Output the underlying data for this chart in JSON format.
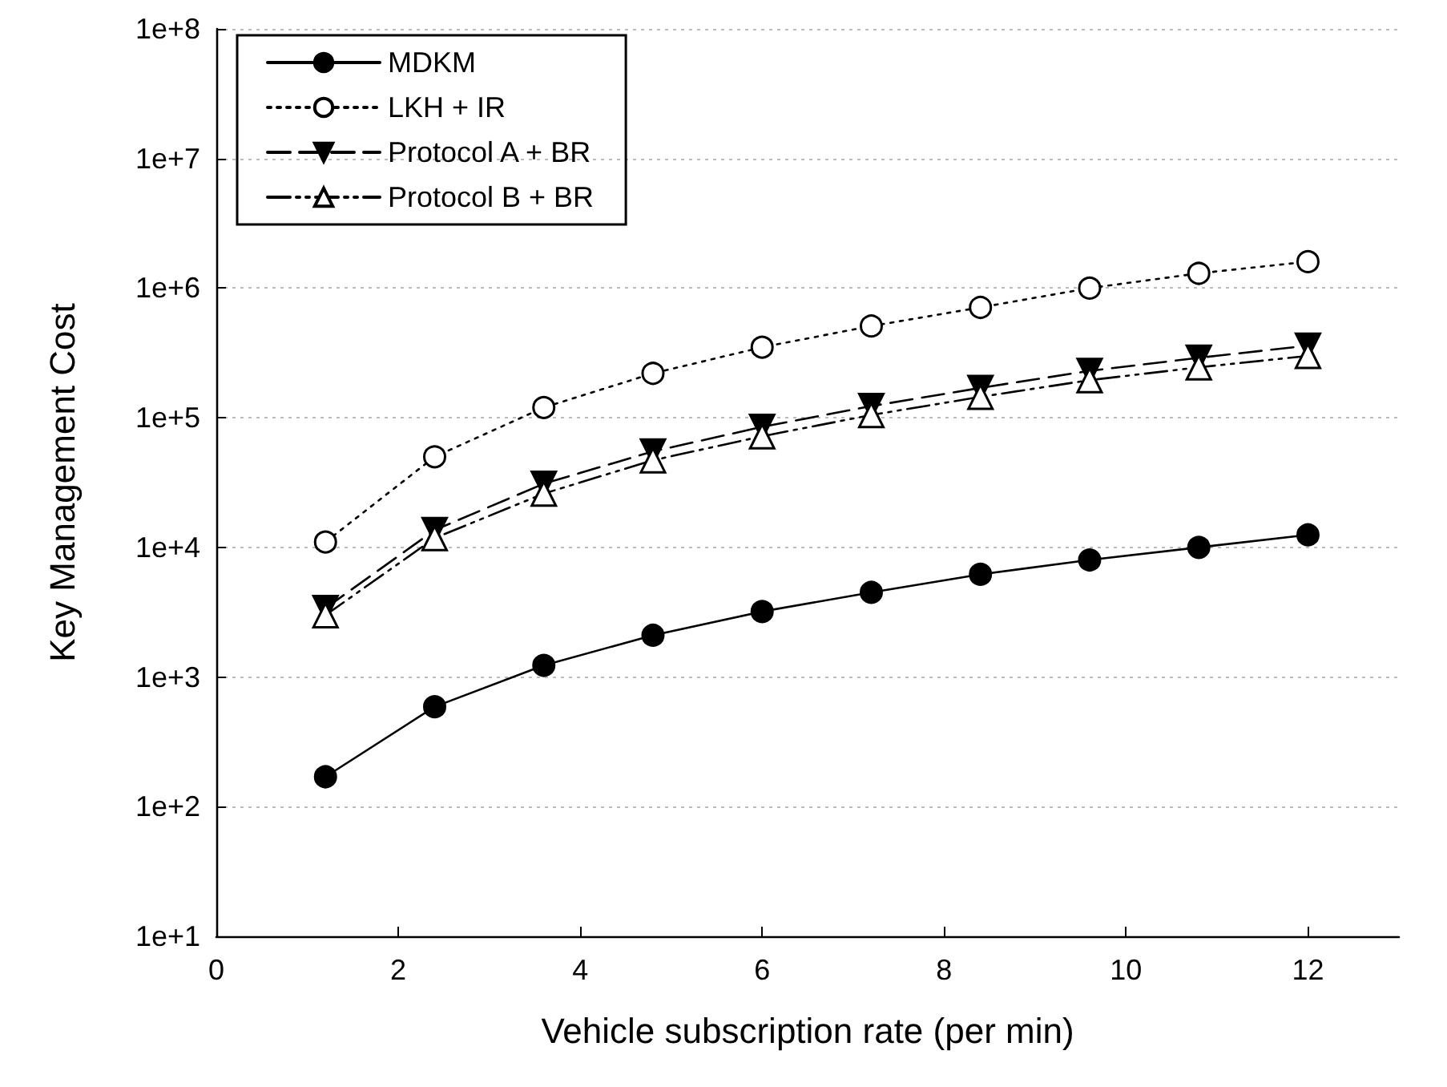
{
  "chart_data": {
    "type": "line",
    "xlabel": "Vehicle subscription rate (per min)",
    "ylabel": "Key Management Cost",
    "x": [
      1.2,
      2.4,
      3.6,
      4.8,
      6.0,
      7.2,
      8.4,
      9.6,
      10.8,
      12.0
    ],
    "series": [
      {
        "name": "MDKM",
        "color": "#000000",
        "marker": "circle",
        "line_style": "solid",
        "values": [
          170,
          590,
          1230,
          2100,
          3200,
          4500,
          6200,
          8000,
          10000,
          12500
        ]
      },
      {
        "name": "LKH + IR",
        "color": "#000000",
        "marker": "circle",
        "line_style": "dotted",
        "values": [
          11000,
          50000,
          120000,
          220000,
          350000,
          510000,
          710000,
          1000000,
          1300000,
          1600000
        ]
      },
      {
        "name": "Protocol A + BR",
        "color": "#000000",
        "marker": "triangle",
        "line_style": "dashed",
        "values": [
          3400,
          13600,
          31000,
          55000,
          85000,
          123000,
          170000,
          230000,
          290000,
          360000
        ]
      },
      {
        "name": "Protocol B + BR",
        "color": "#000000",
        "marker": "triangle",
        "line_style": "dashdot",
        "values": [
          3000,
          11800,
          26000,
          47000,
          72000,
          105000,
          145000,
          195000,
          245000,
          300000
        ]
      }
    ],
    "log": "y",
    "xlim": [
      0,
      13
    ],
    "xticks": [
      0,
      2,
      4,
      6,
      8,
      10,
      12
    ],
    "ylim": [
      10,
      100000000
    ],
    "yticks": [
      {
        "value": 10,
        "label": "1e+1"
      },
      {
        "value": 100,
        "label": "1e+2"
      },
      {
        "value": 1000,
        "label": "1e+3"
      },
      {
        "value": 10000,
        "label": "1e+4"
      },
      {
        "value": 100000,
        "label": "1e+5"
      },
      {
        "value": 1000000,
        "label": "1e+6"
      },
      {
        "value": 10000000,
        "label": "1e+7"
      },
      {
        "value": 100000000,
        "label": "1e+8"
      }
    ],
    "grid": "y",
    "legend": "top left"
  }
}
